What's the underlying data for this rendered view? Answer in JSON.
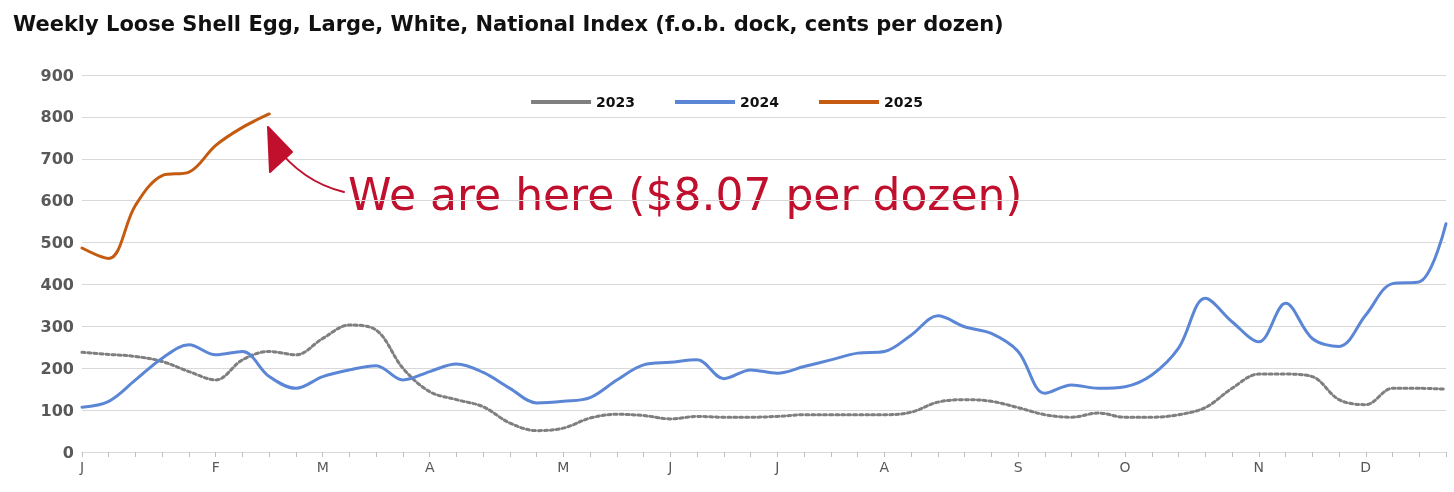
{
  "chart_data": {
    "type": "line",
    "title": "Weekly Loose Shell Egg, Large, White, National Index (f.o.b. dock, cents per dozen)",
    "categories": [
      "J",
      null,
      null,
      null,
      null,
      "F",
      null,
      null,
      null,
      "M",
      null,
      null,
      null,
      "A",
      null,
      null,
      null,
      null,
      "M",
      null,
      null,
      null,
      "J",
      null,
      null,
      null,
      "J",
      null,
      null,
      null,
      "A",
      null,
      null,
      null,
      null,
      "S",
      null,
      null,
      null,
      "O",
      null,
      null,
      null,
      null,
      "N",
      null,
      null,
      null,
      "D",
      null,
      null,
      null
    ],
    "series": [
      {
        "name": "2023",
        "color": "#7f7f7f",
        "line_style": "dotted",
        "values": [
          238,
          233,
          228,
          216,
          192,
          172,
          220,
          240,
          232,
          271,
          303,
          291,
          200,
          144,
          125,
          108,
          69,
          51,
          57,
          81,
          90,
          87,
          79,
          85,
          83,
          83,
          85,
          89,
          89,
          89,
          89,
          95,
          119,
          125,
          121,
          106,
          89,
          83,
          93,
          83,
          83,
          89,
          106,
          152,
          186,
          186,
          180,
          125,
          113,
          152,
          152,
          150
        ]
      },
      {
        "name": "2024",
        "color": "#5b86d6",
        "line_style": "solid",
        "values": [
          107,
          121,
          172,
          224,
          256,
          232,
          240,
          180,
          152,
          180,
          196,
          206,
          172,
          192,
          210,
          190,
          152,
          117,
          121,
          130,
          172,
          208,
          214,
          220,
          175,
          196,
          188,
          204,
          220,
          236,
          240,
          279,
          325,
          299,
          283,
          240,
          140,
          160,
          152,
          156,
          184,
          248,
          367,
          311,
          263,
          355,
          271,
          252,
          327,
          402,
          406,
          545
        ]
      },
      {
        "name": "2025",
        "color": "#c55a11",
        "line_style": "solid",
        "values": [
          487,
          462,
          589,
          660,
          668,
          732,
          775,
          807,
          null,
          null,
          null,
          null,
          null,
          null,
          null,
          null,
          null,
          null,
          null,
          null,
          null,
          null,
          null,
          null,
          null,
          null,
          null,
          null,
          null,
          null,
          null,
          null,
          null,
          null,
          null,
          null,
          null,
          null,
          null,
          null,
          null,
          null,
          null,
          null,
          null,
          null,
          null,
          null,
          null,
          null,
          null,
          null
        ]
      }
    ],
    "ylim": [
      0,
      900
    ],
    "yticks": [
      0,
      100,
      200,
      300,
      400,
      500,
      600,
      700,
      800,
      900
    ],
    "grid": "y",
    "legend": "top",
    "marker": "none",
    "annotations": [
      "We are here ($8.07 per dozen)"
    ]
  }
}
